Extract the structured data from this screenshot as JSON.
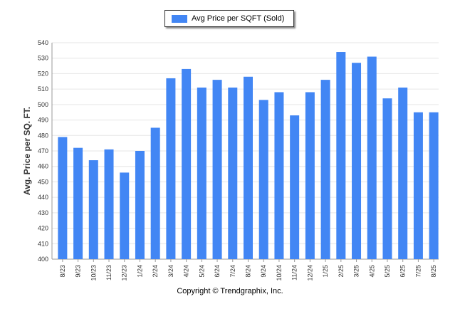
{
  "legend": {
    "label": "Avg Price per SQFT (Sold)"
  },
  "footer": {
    "copyright": "Copyright © Trendgraphix, Inc."
  },
  "colors": {
    "bar": "#4286f4",
    "grid": "#e6e6e6",
    "axis": "#999999"
  },
  "chart_data": {
    "type": "bar",
    "ylabel": "Avg. Price per SQ. FT.",
    "xlabel": "",
    "ylim": [
      400,
      540
    ],
    "yticks": [
      400,
      410,
      420,
      430,
      440,
      450,
      460,
      470,
      480,
      490,
      500,
      510,
      520,
      530,
      540
    ],
    "grid": true,
    "legend_position": "top-center",
    "categories": [
      "8/23",
      "9/23",
      "10/23",
      "11/23",
      "12/23",
      "1/24",
      "2/24",
      "3/24",
      "4/24",
      "5/24",
      "6/24",
      "7/24",
      "8/24",
      "9/24",
      "10/24",
      "11/24",
      "12/24",
      "1/25",
      "2/25",
      "3/25",
      "4/25",
      "5/25",
      "6/25",
      "7/25",
      "8/25"
    ],
    "series": [
      {
        "name": "Avg Price per SQFT (Sold)",
        "values": [
          479,
          472,
          464,
          471,
          456,
          470,
          485,
          517,
          523,
          511,
          516,
          511,
          518,
          503,
          508,
          493,
          508,
          516,
          534,
          527,
          531,
          504,
          511,
          495,
          495
        ]
      }
    ]
  }
}
